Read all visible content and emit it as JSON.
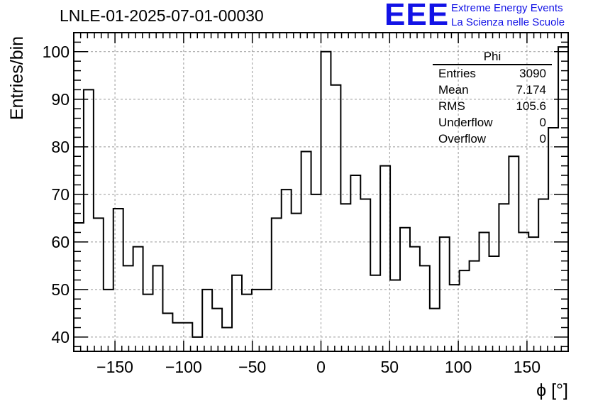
{
  "header": {
    "title": "LNLE-01-2025-07-01-00030",
    "logo_text": "EEE",
    "logo_line1": "Extreme Energy Events",
    "logo_line2": "La Scienza nelle Scuole",
    "logo_color": "#1212e6"
  },
  "stats": {
    "title": "Phi",
    "rows": [
      {
        "label": "Entries",
        "value": "3090"
      },
      {
        "label": "Mean",
        "value": "7.174"
      },
      {
        "label": "RMS",
        "value": "105.6"
      },
      {
        "label": "Underflow",
        "value": "0"
      },
      {
        "label": "Overflow",
        "value": "0"
      }
    ]
  },
  "chart_data": {
    "type": "bar",
    "style": "step-histogram",
    "title": "LNLE-01-2025-07-01-00030",
    "xlabel": "ϕ [°]",
    "ylabel": "Entries/bin",
    "xlim": [
      -180,
      180
    ],
    "ylim": [
      37,
      104
    ],
    "bin_width": 7.2,
    "x_ticks": [
      -150,
      -100,
      -50,
      0,
      50,
      100,
      150
    ],
    "x_tick_labels": [
      "−150",
      "−100",
      "−50",
      "0",
      "50",
      "100",
      "150"
    ],
    "y_ticks": [
      40,
      50,
      60,
      70,
      80,
      90,
      100
    ],
    "y_tick_labels": [
      "40",
      "50",
      "60",
      "70",
      "80",
      "90",
      "100"
    ],
    "grid": true,
    "values": [
      64,
      92,
      65,
      50,
      67,
      55,
      59,
      49,
      55,
      45,
      43,
      43,
      40,
      50,
      46,
      42,
      53,
      49,
      50,
      50,
      65,
      71,
      66,
      79,
      70,
      100,
      93,
      68,
      74,
      69,
      53,
      76,
      52,
      63,
      59,
      55,
      46,
      61,
      51,
      54,
      56,
      62,
      57,
      68,
      78,
      62,
      61,
      69,
      84,
      101
    ]
  }
}
